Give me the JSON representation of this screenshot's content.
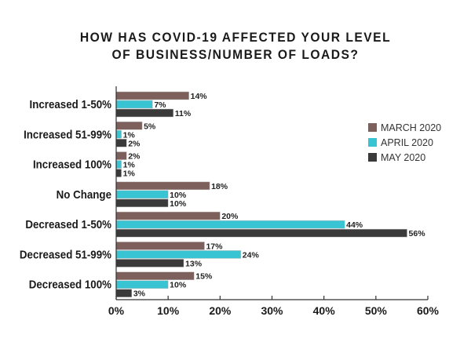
{
  "chart_data": {
    "type": "bar",
    "orientation": "horizontal",
    "title": "HOW HAS COVID-19 AFFECTED YOUR LEVEL OF BUSINESS/NUMBER OF LOADS?",
    "title_lines": [
      "HOW HAS COVID-19 AFFECTED YOUR LEVEL",
      "OF BUSINESS/NUMBER OF LOADS?"
    ],
    "categories": [
      "Increased 1-50%",
      "Increased 51-99%",
      "Increased 100%",
      "No Change",
      "Decreased 1-50%",
      "Decreased 51-99%",
      "Decreased 100%"
    ],
    "series": [
      {
        "name": "MARCH 2020",
        "color": "#7d605b",
        "values": [
          14,
          5,
          2,
          18,
          20,
          17,
          15
        ]
      },
      {
        "name": "APRIL 2020",
        "color": "#38c4d2",
        "values": [
          7,
          1,
          1,
          10,
          44,
          24,
          10
        ]
      },
      {
        "name": "MAY 2020",
        "color": "#3a3a3a",
        "values": [
          11,
          2,
          1,
          10,
          56,
          13,
          3
        ]
      }
    ],
    "xlim": [
      0,
      60
    ],
    "xticks": [
      0,
      10,
      20,
      30,
      40,
      50,
      60
    ],
    "xtick_labels": [
      "0%",
      "10%",
      "20%",
      "30%",
      "40%",
      "50%",
      "60%"
    ],
    "xlabel": "",
    "ylabel": "",
    "grid": false,
    "legend_position": "right",
    "value_suffix": "%"
  }
}
